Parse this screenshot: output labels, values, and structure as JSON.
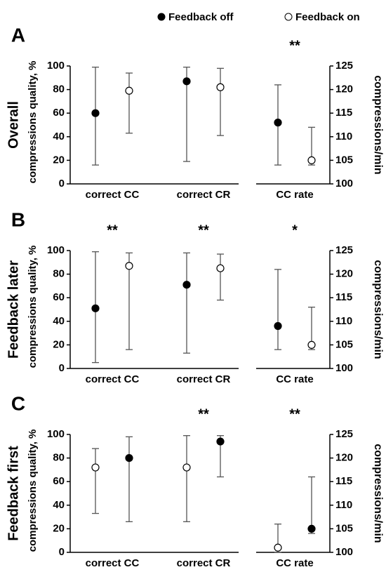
{
  "legend": {
    "series": [
      {
        "name": "Feedback off",
        "color": "#000000"
      },
      {
        "name": "Feedback on",
        "color": "#ffffff"
      }
    ]
  },
  "chart_data": [
    {
      "type": "errorbar",
      "panel_label": "A",
      "title": "Overall",
      "ylabel": "compressions quality, %",
      "y2label": "compressions/min",
      "categories": [
        "correct CC",
        "correct CR",
        "CC rate"
      ],
      "significance": [
        null,
        null,
        "**"
      ],
      "ylim": [
        0,
        100
      ],
      "yticks": [
        0,
        20,
        40,
        60,
        80,
        100
      ],
      "y2lim": [
        100,
        125
      ],
      "y2ticks": [
        100,
        105,
        110,
        115,
        120,
        125
      ],
      "points": [
        {
          "category": 0,
          "series": 0,
          "value": 60,
          "low": 16,
          "high": 99
        },
        {
          "category": 0,
          "series": 1,
          "value": 79,
          "low": 43,
          "high": 94
        },
        {
          "category": 1,
          "series": 0,
          "value": 87,
          "low": 19,
          "high": 99
        },
        {
          "category": 1,
          "series": 1,
          "value": 82,
          "low": 41,
          "high": 98
        },
        {
          "category": 2,
          "series": 0,
          "value": 113,
          "low": 104,
          "high": 121,
          "axis": "y2"
        },
        {
          "category": 2,
          "series": 1,
          "value": 105,
          "low": 104,
          "high": 112,
          "axis": "y2"
        }
      ]
    },
    {
      "type": "errorbar",
      "panel_label": "B",
      "title": "Feedback later",
      "ylabel": "compressions quality, %",
      "y2label": "compressions/min",
      "categories": [
        "correct CC",
        "correct CR",
        "CC rate"
      ],
      "significance": [
        "**",
        "**",
        "*"
      ],
      "ylim": [
        0,
        100
      ],
      "yticks": [
        0,
        20,
        40,
        60,
        80,
        100
      ],
      "y2lim": [
        100,
        125
      ],
      "y2ticks": [
        100,
        105,
        110,
        115,
        120,
        125
      ],
      "points": [
        {
          "category": 0,
          "series": 0,
          "value": 51,
          "low": 5,
          "high": 99
        },
        {
          "category": 0,
          "series": 1,
          "value": 87,
          "low": 16,
          "high": 98
        },
        {
          "category": 1,
          "series": 0,
          "value": 71,
          "low": 13,
          "high": 98
        },
        {
          "category": 1,
          "series": 1,
          "value": 85,
          "low": 58,
          "high": 97
        },
        {
          "category": 2,
          "series": 0,
          "value": 109,
          "low": 104,
          "high": 121,
          "axis": "y2"
        },
        {
          "category": 2,
          "series": 1,
          "value": 105,
          "low": 104,
          "high": 113,
          "axis": "y2"
        }
      ]
    },
    {
      "type": "errorbar",
      "panel_label": "C",
      "title": "Feedback first",
      "ylabel": "compressions quality, %",
      "y2label": "compressions/min",
      "categories": [
        "correct CC",
        "correct CR",
        "CC rate"
      ],
      "significance": [
        null,
        "**",
        "**"
      ],
      "ylim": [
        0,
        100
      ],
      "yticks": [
        0,
        20,
        40,
        60,
        80,
        100
      ],
      "y2lim": [
        100,
        125
      ],
      "y2ticks": [
        100,
        105,
        110,
        115,
        120,
        125
      ],
      "points": [
        {
          "category": 0,
          "series": 1,
          "value": 72,
          "low": 33,
          "high": 88
        },
        {
          "category": 0,
          "series": 0,
          "value": 80,
          "low": 26,
          "high": 98
        },
        {
          "category": 1,
          "series": 1,
          "value": 72,
          "low": 26,
          "high": 99
        },
        {
          "category": 1,
          "series": 0,
          "value": 94,
          "low": 64,
          "high": 99
        },
        {
          "category": 2,
          "series": 1,
          "value": 101,
          "low": 100,
          "high": 106,
          "axis": "y2"
        },
        {
          "category": 2,
          "series": 0,
          "value": 105,
          "low": 104,
          "high": 116,
          "axis": "y2"
        }
      ]
    }
  ]
}
